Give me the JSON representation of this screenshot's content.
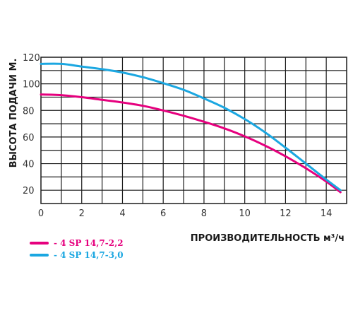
{
  "chart_data": {
    "type": "line",
    "xlabel": "ПРОИЗВОДИТЕЛЬНОСТЬ м³/ч",
    "ylabel": "ВЫСОТА ПОДАЧИ М.",
    "xlim": [
      0,
      15
    ],
    "ylim": [
      10,
      120
    ],
    "x_ticks": [
      "0",
      "2",
      "4",
      "6",
      "8",
      "10",
      "12",
      "14"
    ],
    "y_ticks": [
      "20",
      "40",
      "60",
      "80",
      "100",
      "120"
    ],
    "grid": true,
    "legend_position": "bottom-left",
    "series": [
      {
        "name": "- 4 SP 14,7-2,2",
        "color": "#e6007e",
        "x": [
          0,
          1,
          2,
          3,
          4,
          5,
          6,
          7,
          8,
          9,
          10,
          11,
          12,
          13,
          14,
          14.7
        ],
        "y": [
          92,
          91.5,
          90,
          88,
          86,
          83.5,
          80,
          76,
          71.5,
          66.5,
          60.5,
          53.5,
          45.5,
          36.5,
          26.5,
          18.5
        ]
      },
      {
        "name": "- 4 SP 14,7-3,0",
        "color": "#1ba7e1",
        "x": [
          0,
          1,
          2,
          3,
          4,
          5,
          6,
          7,
          8,
          9,
          10,
          11,
          12,
          13,
          14,
          14.7
        ],
        "y": [
          115,
          115,
          113,
          111,
          108.5,
          105,
          100.5,
          95.5,
          89,
          82,
          73.5,
          63.5,
          52,
          40,
          28,
          20
        ]
      }
    ]
  }
}
